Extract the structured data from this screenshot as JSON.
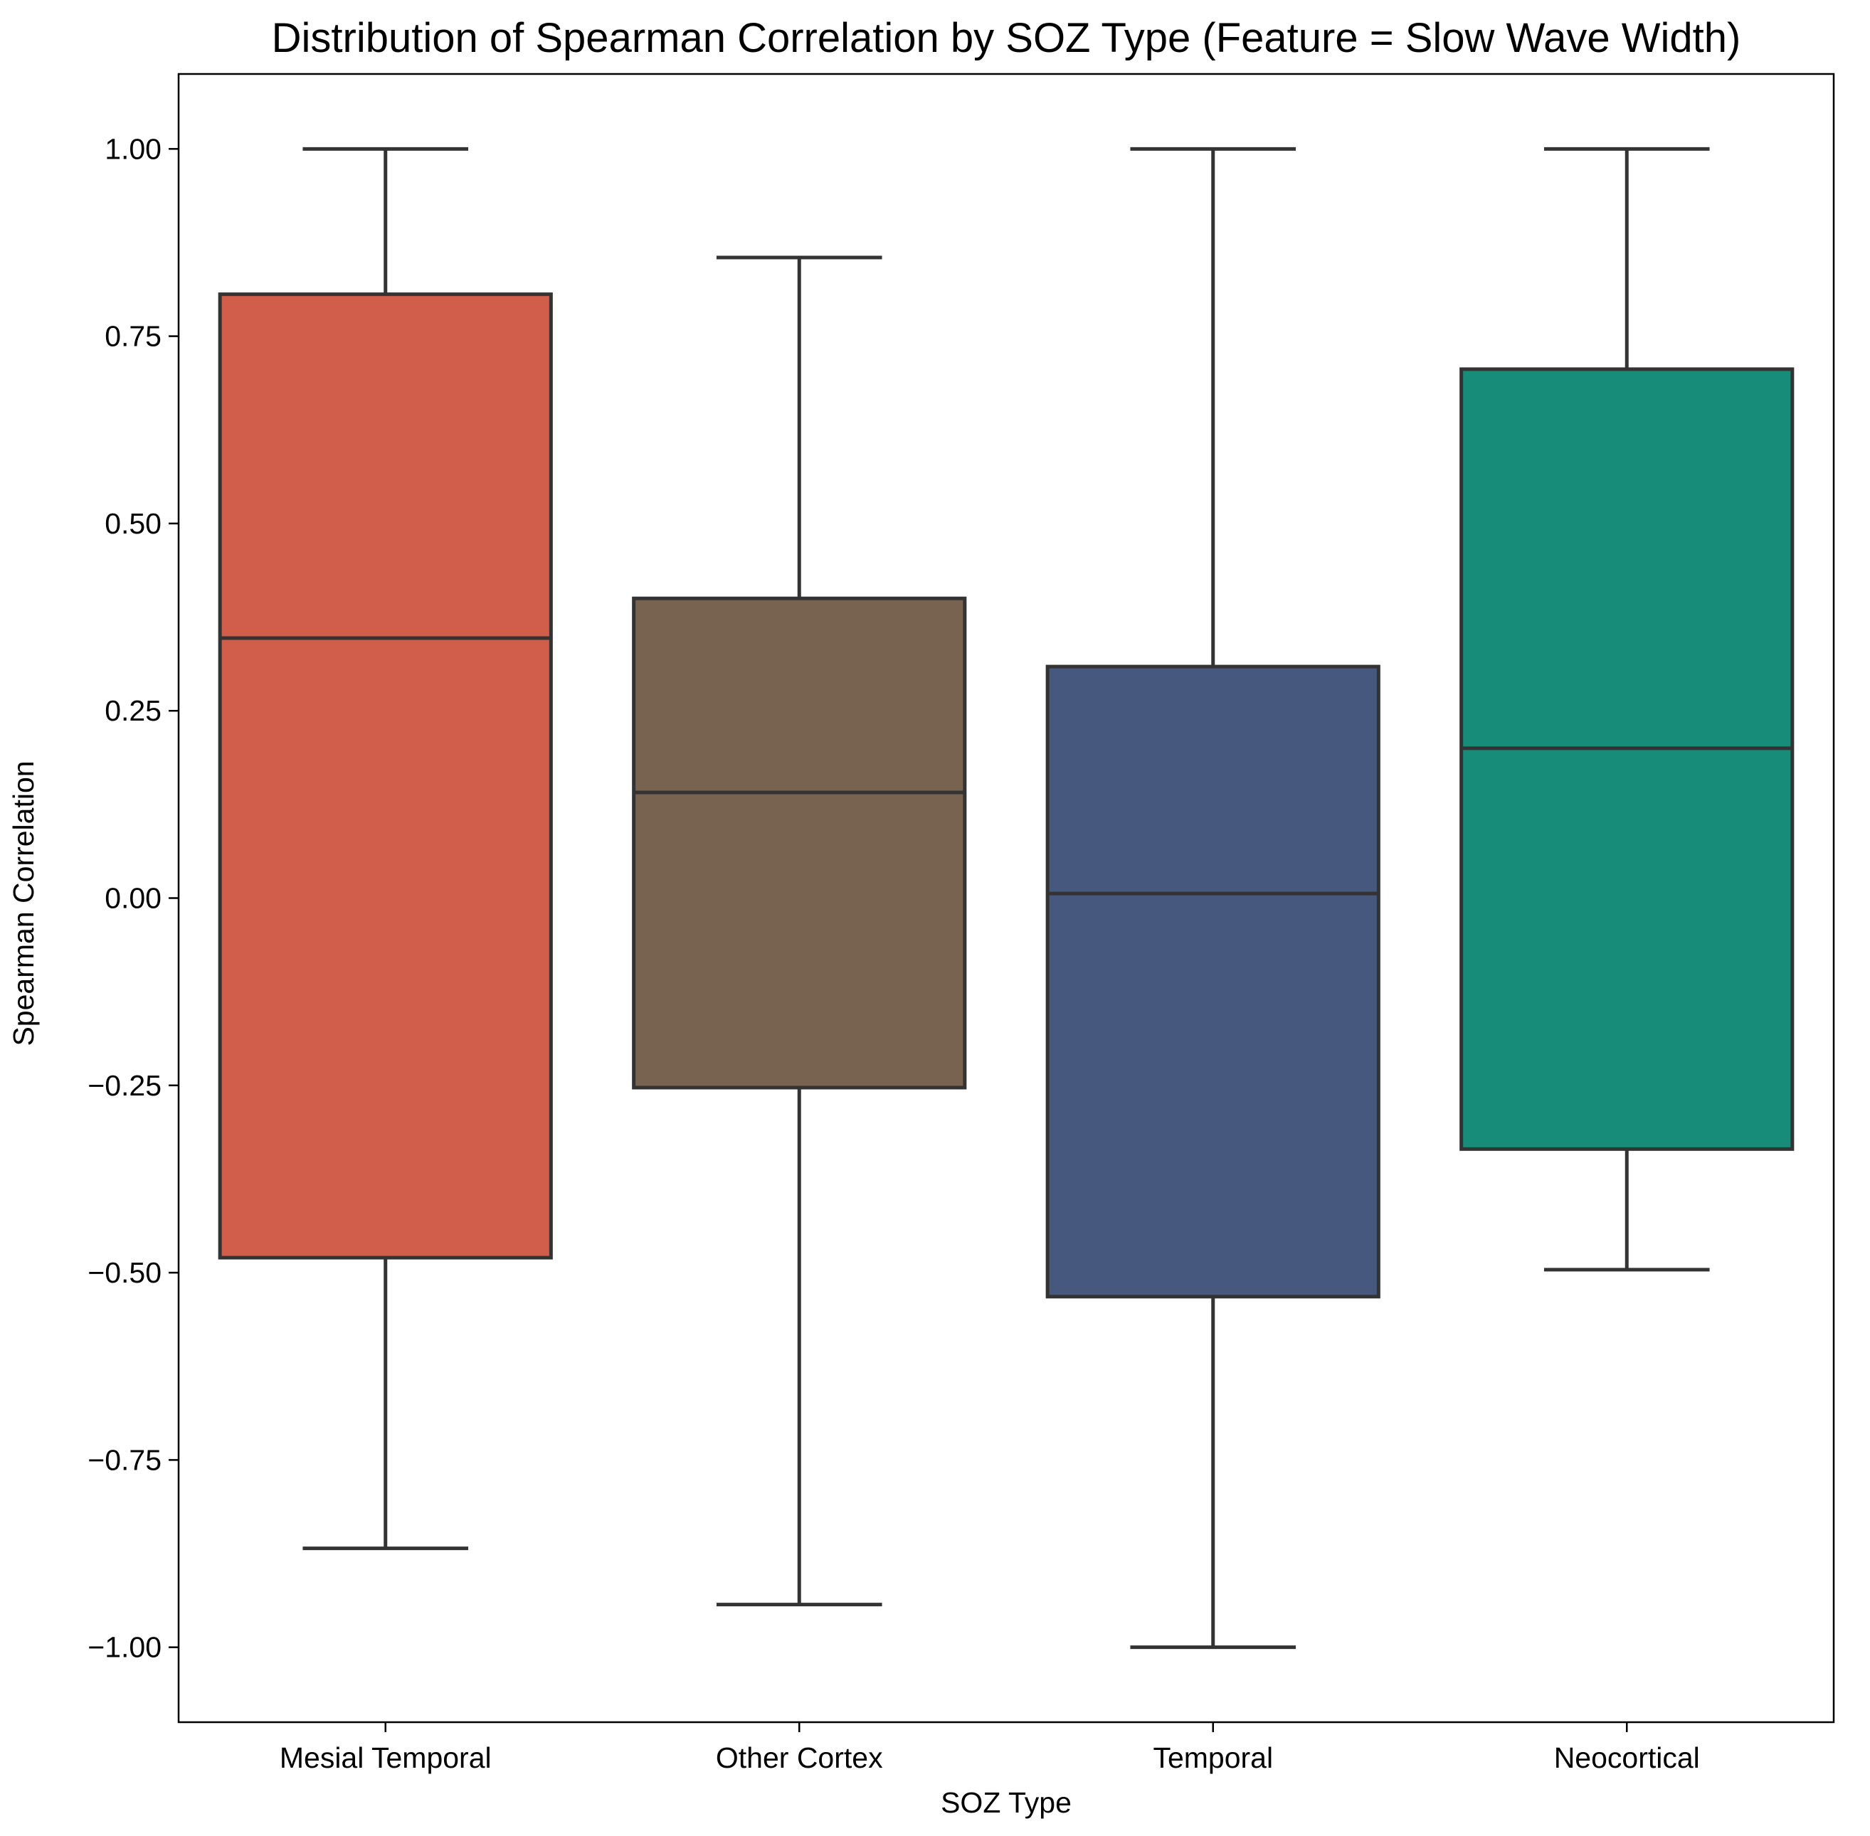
{
  "chart_data": {
    "type": "box",
    "title": "Distribution of Spearman Correlation by SOZ Type (Feature = Slow Wave Width)",
    "xlabel": "SOZ Type",
    "ylabel": "Spearman Correlation",
    "ylim": [
      -1.1,
      1.1
    ],
    "yticks": [
      1.0,
      0.75,
      0.5,
      0.25,
      0.0,
      -0.25,
      -0.5,
      -0.75,
      -1.0
    ],
    "ytick_labels": [
      "1.00",
      "0.75",
      "0.50",
      "0.25",
      "0.00",
      "−0.25",
      "−0.50",
      "−0.75",
      "−1.00"
    ],
    "categories": [
      "Mesial Temporal",
      "Other Cortex",
      "Temporal",
      "Neocortical"
    ],
    "grid": false,
    "legend": "none",
    "box_edge_color": "#333333",
    "boxes": [
      {
        "category": "Mesial Temporal",
        "whisker_low": -0.868,
        "q1": -0.48,
        "median": 0.347,
        "q3": 0.806,
        "whisker_high": 1.0,
        "color": "#d15e4b"
      },
      {
        "category": "Other Cortex",
        "whisker_low": -0.943,
        "q1": -0.253,
        "median": 0.141,
        "q3": 0.4,
        "whisker_high": 0.855,
        "color": "#786350"
      },
      {
        "category": "Temporal",
        "whisker_low": -1.0,
        "q1": -0.532,
        "median": 0.006,
        "q3": 0.309,
        "whisker_high": 1.0,
        "color": "#46587e"
      },
      {
        "category": "Neocortical",
        "whisker_low": -0.496,
        "q1": -0.335,
        "median": 0.2,
        "q3": 0.706,
        "whisker_high": 1.0,
        "color": "#168c79"
      }
    ]
  }
}
